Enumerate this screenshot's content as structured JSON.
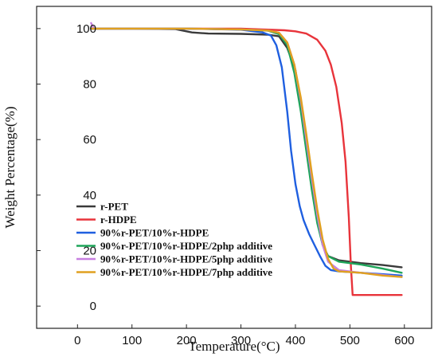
{
  "chart_data": {
    "type": "line",
    "xlabel": "Temperature(°C)",
    "ylabel": "Weight Percentage(%)",
    "xlim": [
      -75,
      650
    ],
    "ylim": [
      -8,
      108
    ],
    "x_ticks": [
      0,
      100,
      200,
      300,
      400,
      500,
      600
    ],
    "y_ticks": [
      0,
      20,
      40,
      60,
      80,
      100
    ],
    "grid": false,
    "legend_position": "lower-left",
    "series": [
      {
        "name": "r-PET",
        "color": "#3a3a3a",
        "points": [
          [
            25,
            100
          ],
          [
            100,
            100
          ],
          [
            180,
            99.8
          ],
          [
            210,
            98.6
          ],
          [
            240,
            98.2
          ],
          [
            300,
            98.1
          ],
          [
            350,
            97.8
          ],
          [
            370,
            97.2
          ],
          [
            385,
            93
          ],
          [
            400,
            85
          ],
          [
            410,
            72
          ],
          [
            420,
            58
          ],
          [
            430,
            45
          ],
          [
            440,
            32
          ],
          [
            450,
            22
          ],
          [
            460,
            18
          ],
          [
            480,
            16.5
          ],
          [
            520,
            15.5
          ],
          [
            560,
            14.8
          ],
          [
            595,
            14
          ]
        ]
      },
      {
        "name": "r-HDPE",
        "color": "#e8343b",
        "points": [
          [
            25,
            100
          ],
          [
            100,
            100
          ],
          [
            200,
            100
          ],
          [
            300,
            100
          ],
          [
            380,
            99.4
          ],
          [
            400,
            99
          ],
          [
            420,
            98.2
          ],
          [
            440,
            96
          ],
          [
            455,
            92
          ],
          [
            465,
            87
          ],
          [
            475,
            79
          ],
          [
            485,
            66
          ],
          [
            492,
            52
          ],
          [
            498,
            32
          ],
          [
            502,
            14
          ],
          [
            505,
            4
          ],
          [
            520,
            4
          ],
          [
            560,
            4
          ],
          [
            595,
            4
          ]
        ]
      },
      {
        "name": "90%r-PET/10%r-HDPE",
        "color": "#1f5fe0",
        "points": [
          [
            25,
            100
          ],
          [
            100,
            100
          ],
          [
            200,
            100
          ],
          [
            300,
            99.6
          ],
          [
            340,
            98.6
          ],
          [
            355,
            97.5
          ],
          [
            365,
            94
          ],
          [
            375,
            86
          ],
          [
            385,
            70
          ],
          [
            392,
            56
          ],
          [
            400,
            44
          ],
          [
            408,
            36
          ],
          [
            415,
            31
          ],
          [
            425,
            26
          ],
          [
            435,
            22
          ],
          [
            445,
            18
          ],
          [
            455,
            14.5
          ],
          [
            465,
            13
          ],
          [
            480,
            12.5
          ],
          [
            520,
            12
          ],
          [
            560,
            11.5
          ],
          [
            595,
            11
          ]
        ]
      },
      {
        "name": "90%r-PET/10%r-HDPE/2php additive",
        "color": "#1fa55a",
        "points": [
          [
            25,
            100
          ],
          [
            100,
            100
          ],
          [
            200,
            100
          ],
          [
            300,
            99.7
          ],
          [
            350,
            99.2
          ],
          [
            370,
            98
          ],
          [
            385,
            94
          ],
          [
            398,
            84
          ],
          [
            410,
            70
          ],
          [
            420,
            56
          ],
          [
            430,
            42
          ],
          [
            440,
            30
          ],
          [
            450,
            22
          ],
          [
            460,
            18
          ],
          [
            480,
            16
          ],
          [
            520,
            15
          ],
          [
            560,
            13.5
          ],
          [
            595,
            12
          ]
        ]
      },
      {
        "name": "90%r-PET/10%r-HDPE/5php additive",
        "color": "#c77fe0",
        "points": [
          [
            25,
            102
          ],
          [
            30,
            100
          ],
          [
            100,
            100
          ],
          [
            200,
            100
          ],
          [
            300,
            99.7
          ],
          [
            350,
            99.3
          ],
          [
            370,
            98.5
          ],
          [
            385,
            95
          ],
          [
            398,
            87
          ],
          [
            410,
            74
          ],
          [
            420,
            60
          ],
          [
            430,
            46
          ],
          [
            440,
            33
          ],
          [
            450,
            22
          ],
          [
            460,
            16
          ],
          [
            480,
            13
          ],
          [
            520,
            12
          ],
          [
            560,
            11.2
          ],
          [
            595,
            10.5
          ]
        ]
      },
      {
        "name": "90%r-PET/10%r-HDPE/7php additive",
        "color": "#e0a020",
        "points": [
          [
            25,
            100
          ],
          [
            100,
            100
          ],
          [
            200,
            100
          ],
          [
            300,
            99.7
          ],
          [
            350,
            99.3
          ],
          [
            370,
            98.5
          ],
          [
            385,
            95
          ],
          [
            398,
            87
          ],
          [
            410,
            75
          ],
          [
            420,
            62
          ],
          [
            430,
            48
          ],
          [
            440,
            35
          ],
          [
            450,
            24
          ],
          [
            460,
            17
          ],
          [
            470,
            13.5
          ],
          [
            480,
            12.5
          ],
          [
            520,
            12
          ],
          [
            560,
            11
          ],
          [
            595,
            10.5
          ]
        ]
      }
    ]
  }
}
